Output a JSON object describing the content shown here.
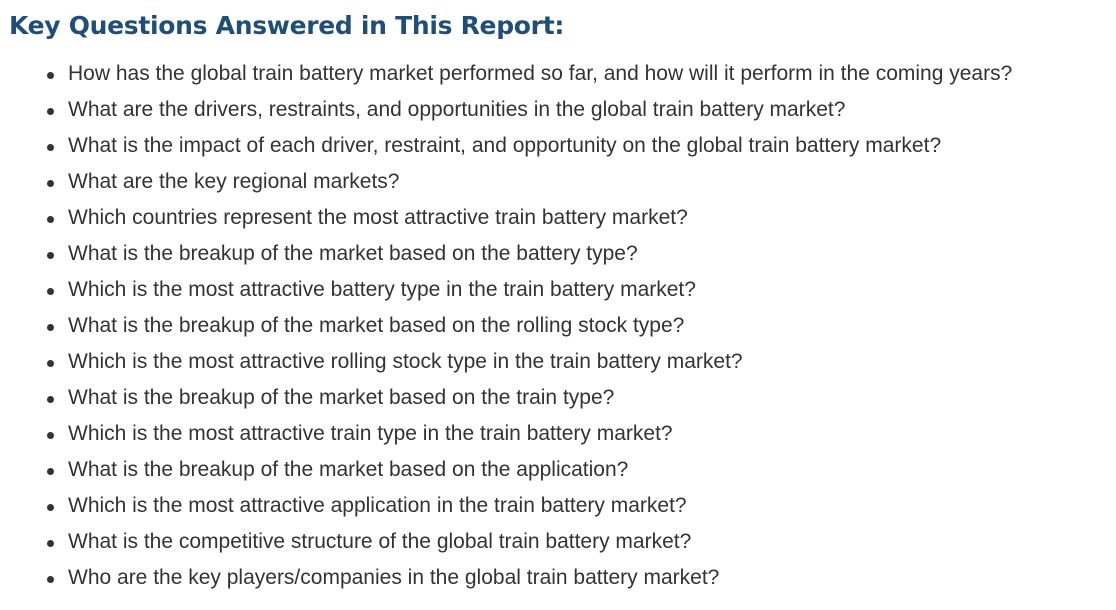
{
  "section": {
    "heading": "Key Questions Answered in This Report:",
    "questions": [
      "How has the global train battery market performed so far, and how will it perform in the coming years?",
      "What are the drivers, restraints, and opportunities in the global train battery market?",
      "What is the impact of each driver, restraint, and opportunity on the global train battery market?",
      "What are the key regional markets?",
      "Which countries represent the most attractive train battery market?",
      "What is the breakup of the market based on the battery type?",
      "Which is the most attractive battery type in the train battery market?",
      "What is the breakup of the market based on the rolling stock type?",
      "Which is the most attractive rolling stock type in the train battery market?",
      "What is the breakup of the market based on the train type?",
      "Which is the most attractive train type in the train battery market?",
      "What is the breakup of the market based on the application?",
      "Which is the most attractive application in the train battery market?",
      "What is the competitive structure of the global train battery market?",
      "Who are the key players/companies in the global train battery market?"
    ]
  },
  "colors": {
    "heading": "#1f4e79",
    "body_text": "#333333",
    "background": "#ffffff"
  }
}
